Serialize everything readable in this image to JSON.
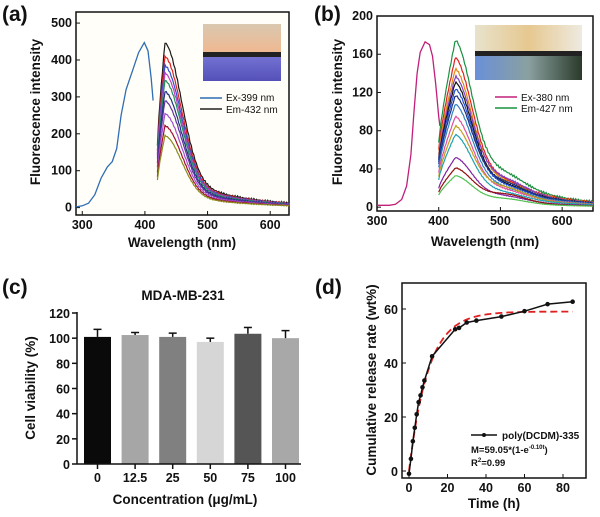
{
  "figure": {
    "panel_labels": [
      "(a)",
      "(b)",
      "(c)",
      "(d)"
    ]
  },
  "colors": {
    "a_excitation": "#2f6db5",
    "a_emission": [
      "#1a1a1a",
      "#e02020",
      "#3050d0",
      "#c040c0",
      "#209060",
      "#203080",
      "#6030a0",
      "#a050d0",
      "#a01030",
      "#8a8a20"
    ],
    "b_excitation": "#c0207a",
    "b_emission": [
      "#1a9040",
      "#e02020",
      "#e08a10",
      "#8040c0",
      "#111111",
      "#2050d0",
      "#203080",
      "#3080c0",
      "#e050a0",
      "#c0a020",
      "#20a0b0",
      "#8020a0",
      "#901010",
      "#50c050"
    ],
    "d_data": "#111111",
    "d_fit": "#e02020"
  },
  "chart_data": [
    {
      "id": "a",
      "type": "line",
      "xlabel": "Wavelength (nm)",
      "ylabel": "Fluorescence intensity",
      "xlim": [
        290,
        630
      ],
      "ylim": [
        -20,
        530
      ],
      "xticks": [
        300,
        400,
        500,
        600
      ],
      "yticks": [
        0,
        100,
        200,
        300,
        400,
        500
      ],
      "legend": {
        "position": "top-right",
        "entries": [
          "Ex-399 nm",
          "Em-432 nm"
        ]
      },
      "inset": "vial photographs (daylight / UV)",
      "excitation": {
        "name": "Ex-399 nm",
        "points": [
          [
            290,
            2
          ],
          [
            300,
            5
          ],
          [
            310,
            12
          ],
          [
            320,
            35
          ],
          [
            330,
            80
          ],
          [
            340,
            110
          ],
          [
            348,
            125
          ],
          [
            355,
            160
          ],
          [
            362,
            250
          ],
          [
            370,
            320
          ],
          [
            380,
            370
          ],
          [
            390,
            420
          ],
          [
            399,
            447
          ],
          [
            405,
            425
          ],
          [
            410,
            350
          ],
          [
            413,
            290
          ]
        ]
      },
      "emission": {
        "name": "Em-432 nm",
        "peak_wavelength": 432,
        "start": 420,
        "end": 630,
        "peaks": [
          447,
          410,
          385,
          365,
          345,
          315,
          290,
          255,
          222,
          195
        ]
      }
    },
    {
      "id": "b",
      "type": "line",
      "xlabel": "Wavelength (nm)",
      "ylabel": "Fluorescence intensity",
      "xlim": [
        300,
        650
      ],
      "ylim": [
        -4,
        200
      ],
      "xticks": [
        300,
        400,
        500,
        600
      ],
      "yticks": [
        0,
        40,
        80,
        120,
        160,
        200
      ],
      "legend": {
        "position": "top-right",
        "entries": [
          "Ex-380 nm",
          "Em-427 nm"
        ]
      },
      "inset": "vial photographs (daylight / UV)",
      "excitation": {
        "name": "Ex-380 nm",
        "points": [
          [
            300,
            2
          ],
          [
            320,
            2
          ],
          [
            330,
            3
          ],
          [
            340,
            8
          ],
          [
            348,
            22
          ],
          [
            355,
            55
          ],
          [
            360,
            100
          ],
          [
            365,
            140
          ],
          [
            370,
            162
          ],
          [
            378,
            173
          ],
          [
            385,
            170
          ],
          [
            390,
            158
          ],
          [
            395,
            130
          ],
          [
            400,
            95
          ],
          [
            402,
            85
          ]
        ]
      },
      "emission": {
        "name": "Em-427 nm",
        "peak_wavelength": 427,
        "start": 400,
        "end": 650,
        "peaks": [
          175,
          157,
          145,
          137,
          131,
          124,
          117,
          108,
          95,
          85,
          76,
          52,
          41,
          33
        ]
      }
    },
    {
      "id": "c",
      "type": "bar",
      "title": "MDA-MB-231",
      "xlabel": "Concentration (μg/mL)",
      "ylabel": "Cell viability (%)",
      "ylim": [
        0,
        120
      ],
      "yticks": [
        0,
        20,
        40,
        60,
        80,
        100,
        120
      ],
      "categories": [
        "0",
        "12.5",
        "25",
        "50",
        "75",
        "100"
      ],
      "values": [
        101,
        102.5,
        101,
        97,
        103.5,
        100
      ],
      "errors": [
        6,
        2,
        3,
        3,
        5,
        6
      ],
      "bar_colors": [
        "#0a0a0a",
        "#a6a6a6",
        "#808080",
        "#d6d6d6",
        "#555555",
        "#a8a8a8"
      ]
    },
    {
      "id": "d",
      "type": "line",
      "xlabel": "Time (h)",
      "ylabel": "Cumulative release rate (wt%)",
      "xlim": [
        -4,
        90
      ],
      "ylim": [
        -4,
        70
      ],
      "xticks": [
        0,
        20,
        40,
        60,
        80
      ],
      "yticks": [
        0,
        20,
        40,
        60
      ],
      "legend": {
        "position": "bottom-right",
        "entries": [
          "poly(DCDM)-335"
        ]
      },
      "series": [
        {
          "name": "poly(DCDM)-335",
          "x": [
            0,
            1,
            2,
            3,
            4,
            5,
            6,
            7,
            8,
            12,
            24,
            26,
            30,
            35,
            48,
            60,
            72,
            85
          ],
          "y": [
            -1,
            4.5,
            11,
            16,
            21,
            25.5,
            28,
            31,
            33.5,
            42.5,
            52.5,
            53,
            55,
            55.7,
            57.2,
            59.2,
            61.8,
            62.7
          ]
        }
      ],
      "fit": {
        "M_inf": 59.05,
        "k": 0.1,
        "equation_main": "M=59.05*(1-e",
        "equation_exp": "-0.10t",
        "equation_close": ")",
        "r2_label": "R",
        "r2_exp": "2",
        "r2_value": "=0.99"
      }
    }
  ]
}
